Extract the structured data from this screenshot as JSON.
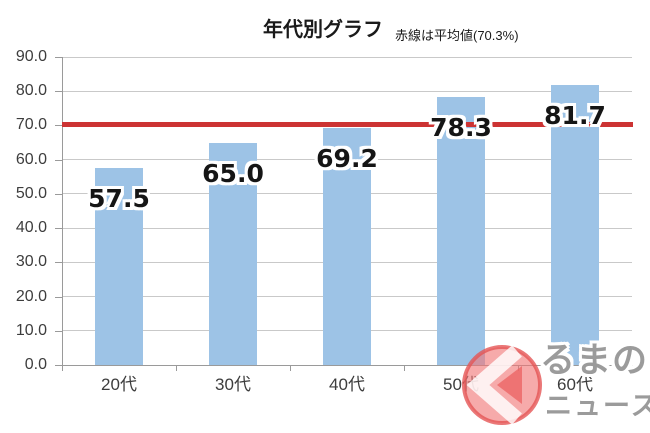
{
  "chart_data": {
    "type": "bar",
    "title": "年代別グラフ",
    "subtitle": "赤線は平均値(70.3%)",
    "categories": [
      "20代",
      "30代",
      "40代",
      "50代",
      "60代"
    ],
    "values": [
      57.5,
      65.0,
      69.2,
      78.3,
      81.7
    ],
    "value_labels": [
      "57.5",
      "65.0",
      "69.2",
      "78.3",
      "81.7"
    ],
    "average_line": {
      "value": 70.3,
      "color": "#cc3333"
    },
    "ylim": [
      0,
      90
    ],
    "y_tick_step": 10,
    "y_ticks": [
      "0.0",
      "10.0",
      "20.0",
      "30.0",
      "40.0",
      "50.0",
      "60.0",
      "70.0",
      "80.0",
      "90.0"
    ],
    "xlabel": "",
    "ylabel": "",
    "grid": true,
    "legend": "none",
    "bar_color": "#9dc3e6",
    "gridline_color": "#c9c9c9",
    "axis_color": "#9a9a9a",
    "data_label_color": "#151515"
  },
  "watermark": {
    "icon": "kuruma-ku-circle-icon",
    "line1": "るまの",
    "line2": "ニュース",
    "circle_color": "#f08a8a",
    "ring_color": "#e86a6a",
    "text_color": "#9b9b9b"
  }
}
